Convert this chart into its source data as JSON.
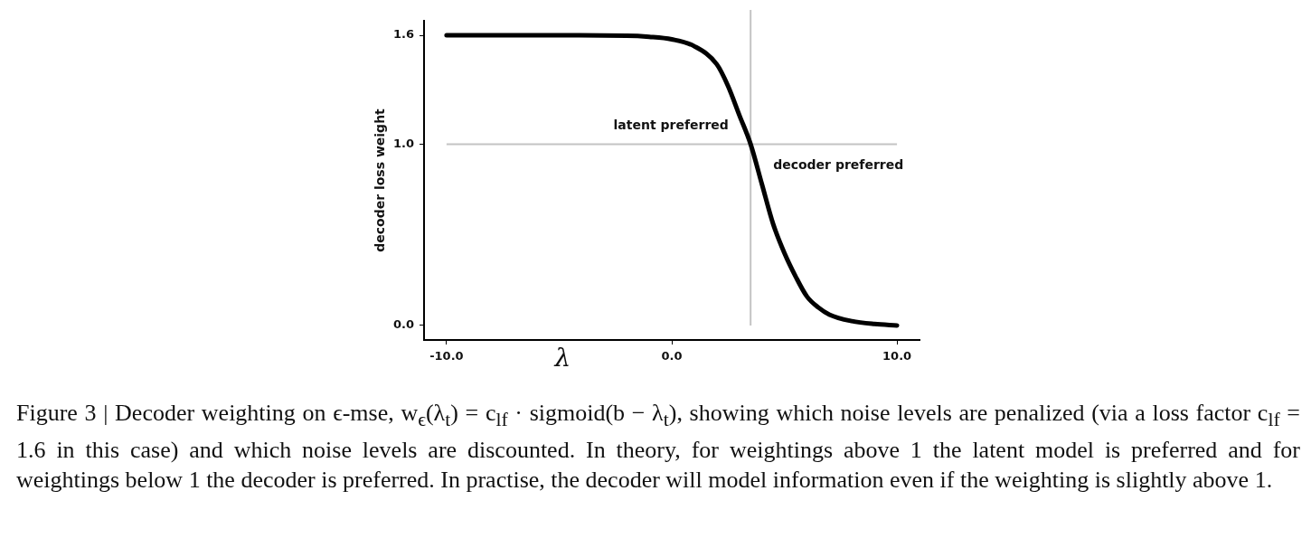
{
  "chart_data": {
    "type": "line",
    "xlabel": "λ",
    "ylabel": "decoder loss weight",
    "x": [
      -10,
      -6,
      -2,
      -1,
      0,
      1,
      2,
      2.5,
      3,
      3.5,
      4,
      4.5,
      5,
      5.5,
      6,
      6.5,
      7,
      8,
      9,
      10
    ],
    "series": [
      {
        "color": "#000000",
        "values": [
          1.6,
          1.6,
          1.598,
          1.592,
          1.578,
          1.54,
          1.44,
          1.32,
          1.16,
          1.0,
          0.78,
          0.56,
          0.4,
          0.27,
          0.16,
          0.1,
          0.06,
          0.024,
          0.008,
          0.0
        ]
      }
    ],
    "xlim": [
      -11,
      11
    ],
    "xticks": [
      {
        "value": -10,
        "label": "-10.0"
      },
      {
        "value": 0,
        "label": "0.0"
      },
      {
        "value": 10,
        "label": "10.0"
      }
    ],
    "ylim": [
      -0.08,
      1.68
    ],
    "yticks": [
      {
        "value": 0,
        "label": "0.0"
      },
      {
        "value": 1,
        "label": "1.0"
      },
      {
        "value": 1.6,
        "label": "1.6"
      }
    ],
    "grid": false,
    "legend": false,
    "marker": "none",
    "line_style": "solid",
    "ref_lines": [
      {
        "axis": "y",
        "value": 1,
        "color": "#c4c4c4"
      },
      {
        "axis": "x",
        "value": 3.5,
        "color": "#c4c4c4"
      }
    ],
    "annotations": [
      "latent preferred",
      "decoder preferred",
      "Figure 3 | Decoder weighting on ϵ-mse, w$_{ϵ}$(λ$_{t}$) = c$_{lf}$ · sigmoid(b − λ$_{t}$), showing which noise levels are penalized (via a loss factor c$_{lf}$ = 1.6 in this case) and which noise levels are discounted. In theory, for weightings above 1 the latent model is preferred and for weightings below 1 the decoder is preferred. In practise, the decoder will model information even if the weighting is slightly above 1."
    ]
  }
}
